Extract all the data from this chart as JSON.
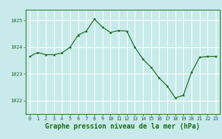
{
  "x": [
    0,
    1,
    2,
    3,
    4,
    5,
    6,
    7,
    8,
    9,
    10,
    11,
    12,
    13,
    14,
    15,
    16,
    17,
    18,
    19,
    20,
    21,
    22,
    23
  ],
  "y": [
    1023.65,
    1023.8,
    1023.72,
    1023.72,
    1023.78,
    1024.0,
    1024.45,
    1024.6,
    1025.05,
    1024.75,
    1024.55,
    1024.62,
    1024.6,
    1024.0,
    1023.55,
    1023.25,
    1022.85,
    1022.55,
    1022.1,
    1022.2,
    1023.05,
    1023.62,
    1023.65,
    1023.65
  ],
  "line_color": "#1a6b1a",
  "marker_color": "#1a6b1a",
  "bg_color": "#c8eaea",
  "grid_color": "#ffffff",
  "xlabel": "Graphe pression niveau de la mer (hPa)",
  "ylim": [
    1021.5,
    1025.4
  ],
  "yticks": [
    1022,
    1023,
    1024,
    1025
  ],
  "xticks": [
    0,
    1,
    2,
    3,
    4,
    5,
    6,
    7,
    8,
    9,
    10,
    11,
    12,
    13,
    14,
    15,
    16,
    17,
    18,
    19,
    20,
    21,
    22,
    23
  ],
  "tick_label_fontsize": 5.0,
  "xlabel_fontsize": 7.0
}
